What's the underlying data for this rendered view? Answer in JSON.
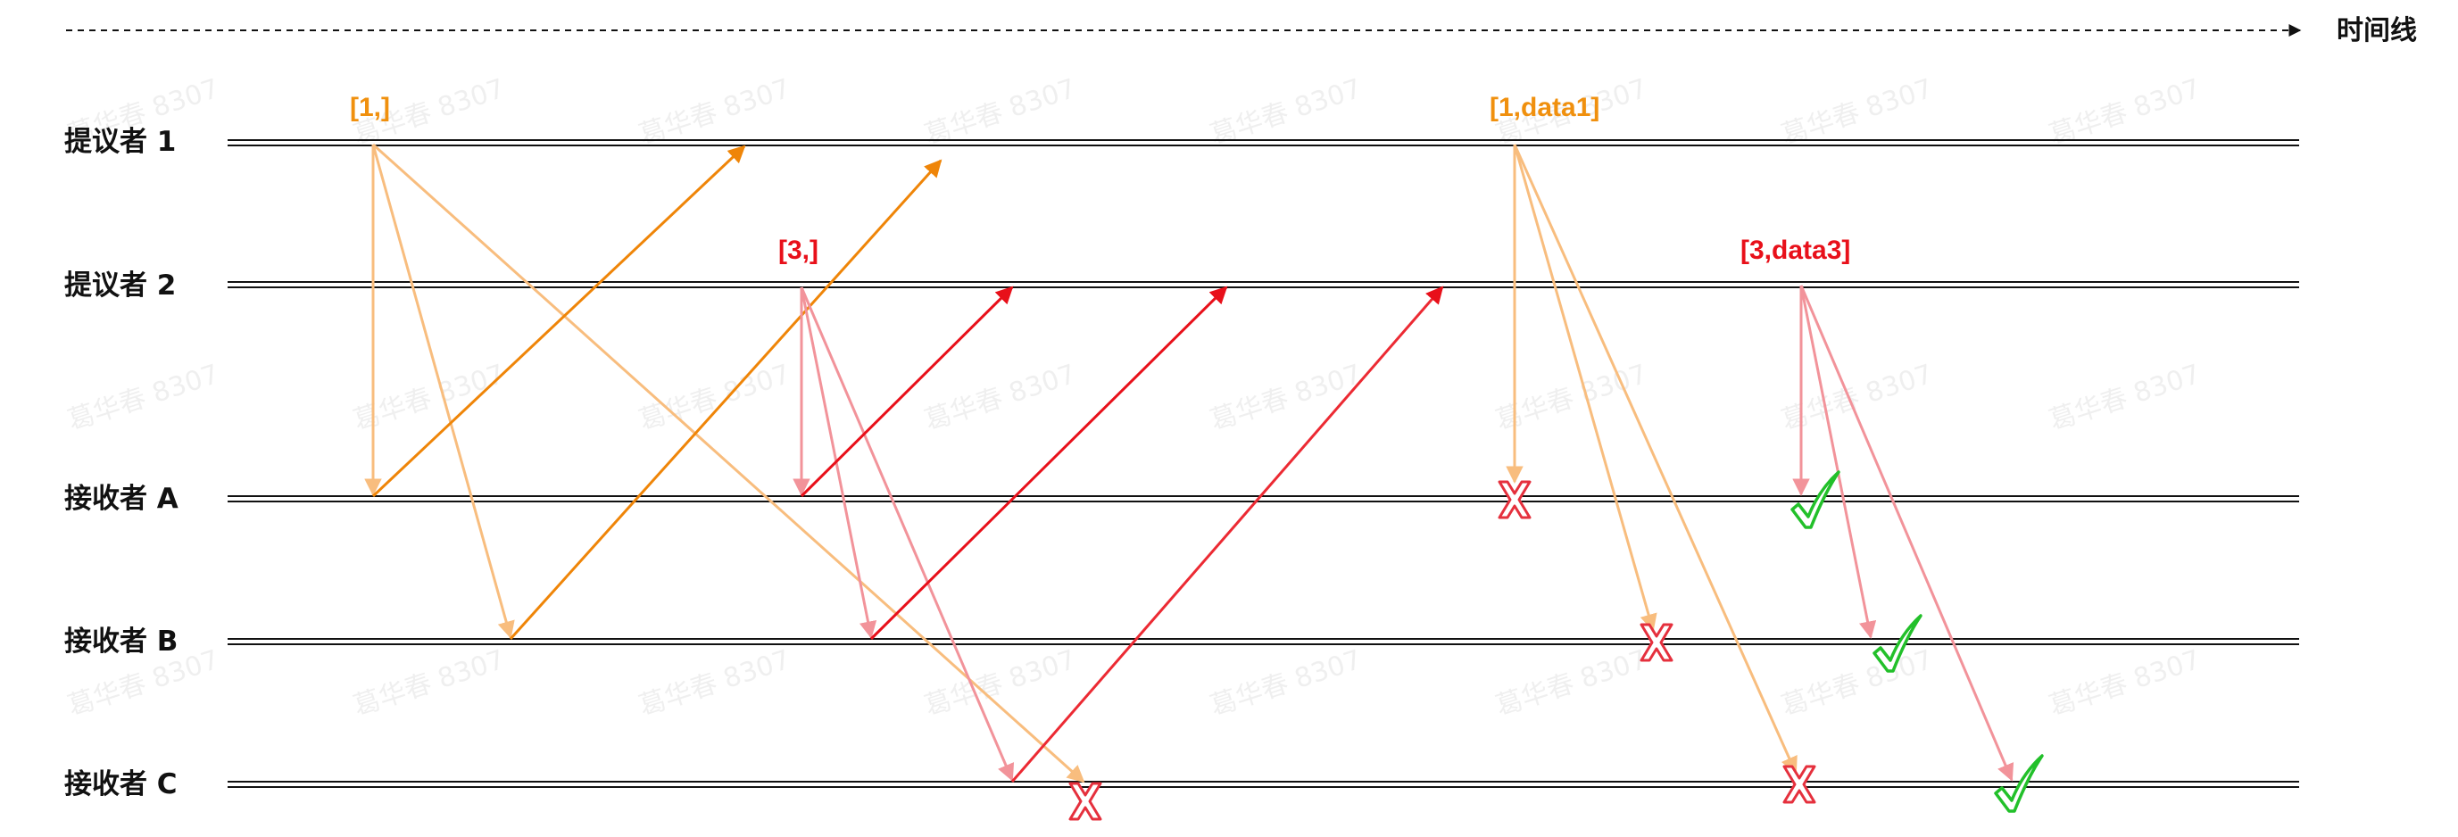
{
  "timeline": {
    "label": "时间线"
  },
  "watermark": "葛华春 8307",
  "participants": [
    {
      "id": "P1",
      "label": "提议者 1"
    },
    {
      "id": "P2",
      "label": "提议者 2"
    },
    {
      "id": "A",
      "label": "接收者 A"
    },
    {
      "id": "B",
      "label": "接收者 B"
    },
    {
      "id": "C",
      "label": "接收者 C"
    }
  ],
  "proposals": [
    {
      "id": "p1-prepare",
      "label": "[1,]",
      "color": "#f0900e"
    },
    {
      "id": "p2-prepare",
      "label": "[3,]",
      "color": "#e8101a"
    },
    {
      "id": "p1-accept",
      "label": "[1,data1]",
      "color": "#f0900e"
    },
    {
      "id": "p2-accept",
      "label": "[3,data3]",
      "color": "#e8101a"
    }
  ],
  "colors": {
    "light_orange": "#f8bd7e",
    "dark_orange": "#ef8508",
    "light_red": "#f2939a",
    "dark_red": "#e8101a",
    "reject_x": "#e5303d",
    "accept_check": "#22c02a",
    "lane_line": "#111111"
  },
  "outcomes": [
    {
      "message": "[1,data1]",
      "acceptor": "A",
      "result": "rejected",
      "icon": "x-mark-icon"
    },
    {
      "message": "[1,data1]",
      "acceptor": "B",
      "result": "rejected",
      "icon": "x-mark-icon"
    },
    {
      "message": "[1,data1]",
      "acceptor": "C",
      "result": "rejected",
      "icon": "x-mark-icon"
    },
    {
      "message": "[1,]",
      "acceptor": "C",
      "result": "rejected",
      "icon": "x-mark-icon"
    },
    {
      "message": "[3,data3]",
      "acceptor": "A",
      "result": "accepted",
      "icon": "check-mark-icon"
    },
    {
      "message": "[3,data3]",
      "acceptor": "B",
      "result": "accepted",
      "icon": "check-mark-icon"
    },
    {
      "message": "[3,data3]",
      "acceptor": "C",
      "result": "accepted",
      "icon": "check-mark-icon"
    }
  ]
}
